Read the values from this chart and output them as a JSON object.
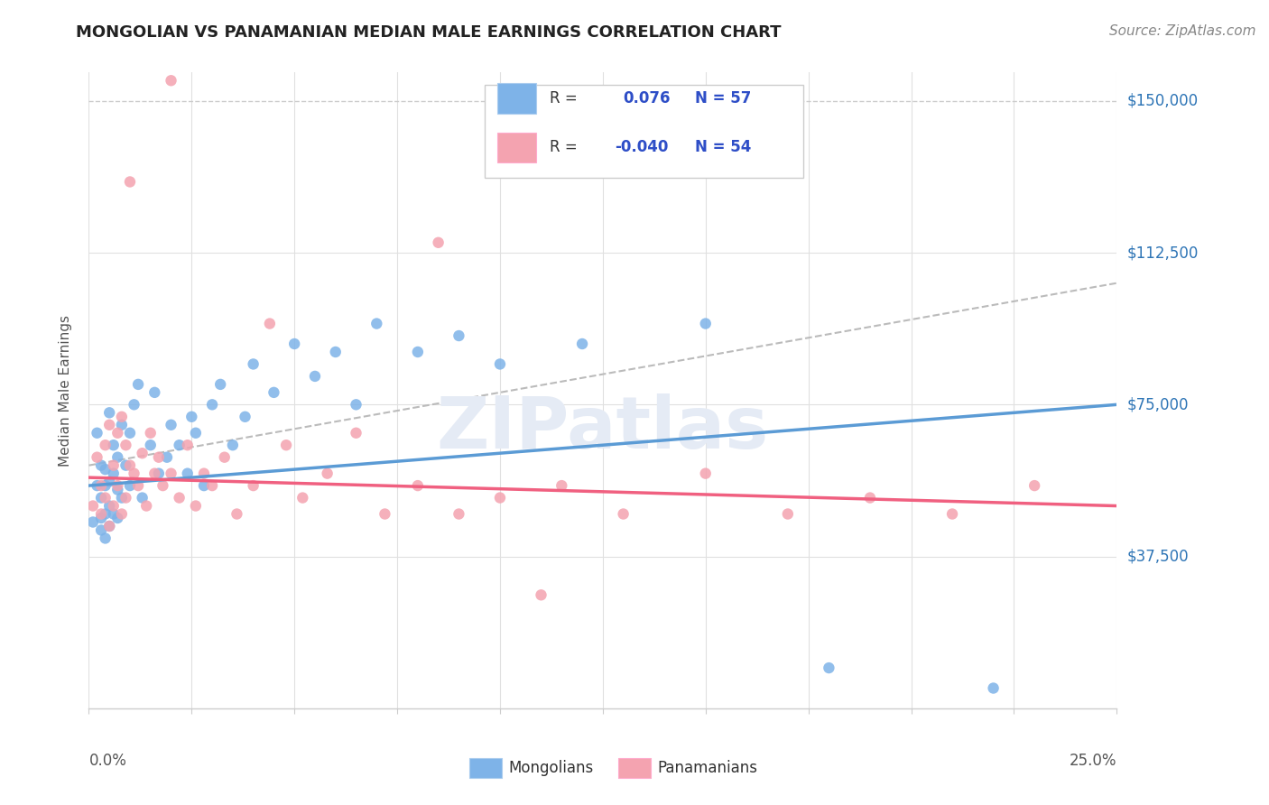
{
  "title": "MONGOLIAN VS PANAMANIAN MEDIAN MALE EARNINGS CORRELATION CHART",
  "source": "Source: ZipAtlas.com",
  "ylabel": "Median Male Earnings",
  "y_ticks": [
    0,
    37500,
    75000,
    112500,
    150000
  ],
  "y_tick_labels": [
    "",
    "$37,500",
    "$75,000",
    "$112,500",
    "$150,000"
  ],
  "xlim": [
    0.0,
    0.25
  ],
  "ylim": [
    0,
    157000
  ],
  "mongolian_R": 0.076,
  "mongolian_N": 57,
  "panamanian_R": -0.04,
  "panamanian_N": 54,
  "mongolian_color": "#7EB3E8",
  "panamanian_color": "#F4A3B0",
  "mongolian_line_color": "#5B9BD5",
  "panamanian_line_color": "#F06080",
  "legend_R_color": "#2E4EC7",
  "watermark": "ZIPatlas",
  "background_color": "#FFFFFF",
  "mongolian_x": [
    0.001,
    0.002,
    0.002,
    0.003,
    0.003,
    0.003,
    0.003,
    0.004,
    0.004,
    0.004,
    0.004,
    0.005,
    0.005,
    0.005,
    0.005,
    0.006,
    0.006,
    0.006,
    0.007,
    0.007,
    0.007,
    0.008,
    0.008,
    0.009,
    0.01,
    0.01,
    0.011,
    0.012,
    0.013,
    0.015,
    0.016,
    0.017,
    0.019,
    0.02,
    0.022,
    0.024,
    0.025,
    0.026,
    0.028,
    0.03,
    0.032,
    0.035,
    0.038,
    0.04,
    0.045,
    0.05,
    0.055,
    0.06,
    0.065,
    0.07,
    0.08,
    0.09,
    0.1,
    0.12,
    0.15,
    0.18,
    0.22
  ],
  "mongolian_y": [
    46000,
    68000,
    55000,
    47000,
    60000,
    52000,
    44000,
    59000,
    48000,
    55000,
    42000,
    73000,
    56000,
    50000,
    45000,
    65000,
    58000,
    48000,
    62000,
    54000,
    47000,
    70000,
    52000,
    60000,
    68000,
    55000,
    75000,
    80000,
    52000,
    65000,
    78000,
    58000,
    62000,
    70000,
    65000,
    58000,
    72000,
    68000,
    55000,
    75000,
    80000,
    65000,
    72000,
    85000,
    78000,
    90000,
    82000,
    88000,
    75000,
    95000,
    88000,
    92000,
    85000,
    90000,
    95000,
    10000,
    5000
  ],
  "panamanian_x": [
    0.001,
    0.002,
    0.003,
    0.003,
    0.004,
    0.004,
    0.005,
    0.005,
    0.006,
    0.006,
    0.007,
    0.007,
    0.008,
    0.008,
    0.009,
    0.009,
    0.01,
    0.011,
    0.012,
    0.013,
    0.014,
    0.015,
    0.016,
    0.017,
    0.018,
    0.02,
    0.022,
    0.024,
    0.026,
    0.028,
    0.03,
    0.033,
    0.036,
    0.04,
    0.044,
    0.048,
    0.052,
    0.058,
    0.065,
    0.072,
    0.08,
    0.09,
    0.1,
    0.115,
    0.13,
    0.15,
    0.17,
    0.19,
    0.21,
    0.23,
    0.01,
    0.02,
    0.085,
    0.11
  ],
  "panamanian_y": [
    50000,
    62000,
    55000,
    48000,
    65000,
    52000,
    70000,
    45000,
    60000,
    50000,
    68000,
    55000,
    72000,
    48000,
    65000,
    52000,
    60000,
    58000,
    55000,
    63000,
    50000,
    68000,
    58000,
    62000,
    55000,
    58000,
    52000,
    65000,
    50000,
    58000,
    55000,
    62000,
    48000,
    55000,
    95000,
    65000,
    52000,
    58000,
    68000,
    48000,
    55000,
    48000,
    52000,
    55000,
    48000,
    58000,
    48000,
    52000,
    48000,
    55000,
    130000,
    155000,
    115000,
    28000
  ],
  "mongolian_trend_x": [
    0.0,
    0.25
  ],
  "mongolian_trend_y": [
    55000,
    75000
  ],
  "panamanian_trend_x": [
    0.0,
    0.25
  ],
  "panamanian_trend_y": [
    57000,
    50000
  ],
  "dashed_trend_x": [
    0.0,
    0.25
  ],
  "dashed_trend_y": [
    60000,
    105000
  ]
}
